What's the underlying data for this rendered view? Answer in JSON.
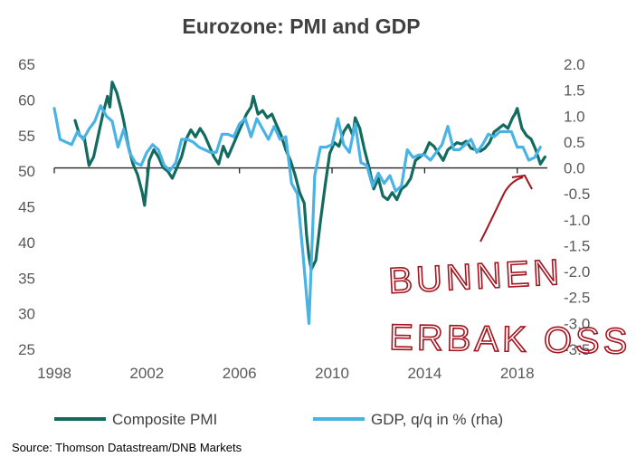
{
  "chart_data": {
    "type": "line",
    "title": "Eurozone: PMI and GDP",
    "x_ticks": [
      "1998",
      "2002",
      "2006",
      "2010",
      "2014",
      "2018"
    ],
    "x_range": [
      1998,
      2019.3
    ],
    "y_left": {
      "range": [
        25,
        65
      ],
      "ticks": [
        "65",
        "60",
        "55",
        "50",
        "45",
        "40",
        "35",
        "30",
        "25"
      ]
    },
    "y_right": {
      "range": [
        -3.5,
        2.0
      ],
      "ticks": [
        "2.0",
        "1.5",
        "1.0",
        "0.5",
        "0.0",
        "-0.5",
        "-1.0",
        "-1.5",
        "-2.0",
        "-2.5",
        "-3.0",
        "-3.5"
      ]
    },
    "legend_position": "bottom",
    "source": "Source: Thomson Datastream/DNB Markets",
    "annotation": {
      "line1": "BUNNEN",
      "line2": "ERBAK OSS"
    },
    "series": [
      {
        "name": "Composite PMI",
        "axis": "left",
        "color": "#136b5f",
        "points": [
          [
            1998.9,
            57.1
          ],
          [
            1999.1,
            55.0
          ],
          [
            1999.3,
            54.6
          ],
          [
            1999.5,
            50.8
          ],
          [
            1999.7,
            52.0
          ],
          [
            1999.9,
            55.0
          ],
          [
            2000.1,
            58.0
          ],
          [
            2000.3,
            60.5
          ],
          [
            2000.4,
            59.0
          ],
          [
            2000.5,
            62.5
          ],
          [
            2000.7,
            61.0
          ],
          [
            2000.9,
            58.5
          ],
          [
            2001.0,
            57.0
          ],
          [
            2001.2,
            53.5
          ],
          [
            2001.4,
            51.0
          ],
          [
            2001.6,
            49.5
          ],
          [
            2001.8,
            47.0
          ],
          [
            2001.9,
            45.2
          ],
          [
            2002.1,
            51.5
          ],
          [
            2002.3,
            53.0
          ],
          [
            2002.5,
            52.0
          ],
          [
            2002.7,
            50.5
          ],
          [
            2002.9,
            50.0
          ],
          [
            2003.1,
            49.0
          ],
          [
            2003.3,
            50.5
          ],
          [
            2003.5,
            52.0
          ],
          [
            2003.7,
            54.5
          ],
          [
            2003.9,
            55.8
          ],
          [
            2004.1,
            54.8
          ],
          [
            2004.3,
            56.0
          ],
          [
            2004.5,
            55.0
          ],
          [
            2004.7,
            53.5
          ],
          [
            2004.9,
            52.0
          ],
          [
            2005.1,
            51.0
          ],
          [
            2005.3,
            53.5
          ],
          [
            2005.5,
            52.0
          ],
          [
            2005.7,
            53.5
          ],
          [
            2005.9,
            55.0
          ],
          [
            2006.1,
            56.5
          ],
          [
            2006.3,
            58.0
          ],
          [
            2006.5,
            59.0
          ],
          [
            2006.6,
            60.5
          ],
          [
            2006.8,
            58.0
          ],
          [
            2007.0,
            58.5
          ],
          [
            2007.2,
            57.5
          ],
          [
            2007.4,
            58.0
          ],
          [
            2007.6,
            56.5
          ],
          [
            2007.8,
            55.0
          ],
          [
            2008.0,
            53.0
          ],
          [
            2008.2,
            51.5
          ],
          [
            2008.4,
            49.5
          ],
          [
            2008.6,
            47.0
          ],
          [
            2008.8,
            45.5
          ],
          [
            2008.9,
            41.0
          ],
          [
            2009.0,
            38.0
          ],
          [
            2009.1,
            36.2
          ],
          [
            2009.3,
            37.5
          ],
          [
            2009.5,
            43.0
          ],
          [
            2009.7,
            48.0
          ],
          [
            2009.9,
            52.5
          ],
          [
            2010.1,
            54.0
          ],
          [
            2010.3,
            53.5
          ],
          [
            2010.5,
            55.5
          ],
          [
            2010.7,
            56.5
          ],
          [
            2010.9,
            55.0
          ],
          [
            2011.0,
            57.5
          ],
          [
            2011.2,
            56.0
          ],
          [
            2011.4,
            53.0
          ],
          [
            2011.6,
            50.5
          ],
          [
            2011.8,
            47.5
          ],
          [
            2012.0,
            49.0
          ],
          [
            2012.2,
            46.5
          ],
          [
            2012.4,
            46.0
          ],
          [
            2012.6,
            47.0
          ],
          [
            2012.8,
            46.0
          ],
          [
            2013.0,
            47.5
          ],
          [
            2013.2,
            48.0
          ],
          [
            2013.4,
            49.0
          ],
          [
            2013.6,
            51.5
          ],
          [
            2013.8,
            52.0
          ],
          [
            2014.0,
            52.5
          ],
          [
            2014.2,
            54.0
          ],
          [
            2014.4,
            53.5
          ],
          [
            2014.6,
            52.5
          ],
          [
            2014.8,
            51.5
          ],
          [
            2015.0,
            53.0
          ],
          [
            2015.2,
            53.5
          ],
          [
            2015.4,
            54.0
          ],
          [
            2015.6,
            53.8
          ],
          [
            2015.8,
            54.2
          ],
          [
            2016.0,
            53.2
          ],
          [
            2016.2,
            53.0
          ],
          [
            2016.4,
            52.8
          ],
          [
            2016.6,
            53.2
          ],
          [
            2016.8,
            54.0
          ],
          [
            2017.0,
            55.5
          ],
          [
            2017.2,
            56.0
          ],
          [
            2017.4,
            56.5
          ],
          [
            2017.6,
            56.0
          ],
          [
            2017.8,
            57.5
          ],
          [
            2017.9,
            58.0
          ],
          [
            2018.0,
            58.8
          ],
          [
            2018.2,
            56.0
          ],
          [
            2018.4,
            55.0
          ],
          [
            2018.6,
            54.5
          ],
          [
            2018.8,
            53.0
          ],
          [
            2019.0,
            51.0
          ],
          [
            2019.1,
            51.5
          ],
          [
            2019.2,
            52.0
          ]
        ]
      },
      {
        "name": "GDP, q/q in % (rha)",
        "axis": "right",
        "color": "#4ab3e6",
        "points": [
          [
            1998.0,
            1.15
          ],
          [
            1998.25,
            0.55
          ],
          [
            1998.5,
            0.5
          ],
          [
            1998.75,
            0.45
          ],
          [
            1999.0,
            0.7
          ],
          [
            1999.25,
            0.55
          ],
          [
            1999.5,
            0.75
          ],
          [
            1999.75,
            0.9
          ],
          [
            2000.0,
            1.2
          ],
          [
            2000.25,
            1.0
          ],
          [
            2000.5,
            0.9
          ],
          [
            2000.75,
            0.4
          ],
          [
            2001.0,
            0.75
          ],
          [
            2001.25,
            0.3
          ],
          [
            2001.5,
            0.1
          ],
          [
            2001.75,
            0.05
          ],
          [
            2002.0,
            0.3
          ],
          [
            2002.25,
            0.45
          ],
          [
            2002.5,
            0.35
          ],
          [
            2002.75,
            0.05
          ],
          [
            2003.0,
            -0.05
          ],
          [
            2003.25,
            0.1
          ],
          [
            2003.5,
            0.55
          ],
          [
            2003.75,
            0.55
          ],
          [
            2004.0,
            0.5
          ],
          [
            2004.25,
            0.4
          ],
          [
            2004.5,
            0.35
          ],
          [
            2004.75,
            0.3
          ],
          [
            2005.0,
            0.3
          ],
          [
            2005.25,
            0.65
          ],
          [
            2005.5,
            0.65
          ],
          [
            2005.75,
            0.6
          ],
          [
            2006.0,
            0.85
          ],
          [
            2006.25,
            0.95
          ],
          [
            2006.5,
            0.6
          ],
          [
            2006.75,
            0.95
          ],
          [
            2007.0,
            0.75
          ],
          [
            2007.25,
            0.55
          ],
          [
            2007.5,
            0.8
          ],
          [
            2007.75,
            0.55
          ],
          [
            2008.0,
            0.6
          ],
          [
            2008.25,
            -0.3
          ],
          [
            2008.5,
            -0.5
          ],
          [
            2008.75,
            -1.7
          ],
          [
            2009.0,
            -3.0
          ],
          [
            2009.25,
            -0.15
          ],
          [
            2009.5,
            0.4
          ],
          [
            2009.75,
            0.4
          ],
          [
            2010.0,
            0.45
          ],
          [
            2010.25,
            0.95
          ],
          [
            2010.5,
            0.45
          ],
          [
            2010.75,
            0.3
          ],
          [
            2011.0,
            0.85
          ],
          [
            2011.25,
            0.1
          ],
          [
            2011.5,
            0.05
          ],
          [
            2011.75,
            -0.35
          ],
          [
            2012.0,
            -0.1
          ],
          [
            2012.25,
            -0.3
          ],
          [
            2012.5,
            -0.15
          ],
          [
            2012.75,
            -0.45
          ],
          [
            2013.0,
            -0.35
          ],
          [
            2013.25,
            0.35
          ],
          [
            2013.5,
            0.2
          ],
          [
            2013.75,
            0.25
          ],
          [
            2014.0,
            0.25
          ],
          [
            2014.25,
            0.15
          ],
          [
            2014.5,
            0.3
          ],
          [
            2014.75,
            0.45
          ],
          [
            2015.0,
            0.8
          ],
          [
            2015.25,
            0.35
          ],
          [
            2015.5,
            0.35
          ],
          [
            2015.75,
            0.45
          ],
          [
            2016.0,
            0.55
          ],
          [
            2016.25,
            0.3
          ],
          [
            2016.5,
            0.45
          ],
          [
            2016.75,
            0.65
          ],
          [
            2017.0,
            0.6
          ],
          [
            2017.25,
            0.7
          ],
          [
            2017.5,
            0.7
          ],
          [
            2017.75,
            0.7
          ],
          [
            2018.0,
            0.4
          ],
          [
            2018.25,
            0.4
          ],
          [
            2018.5,
            0.15
          ],
          [
            2018.75,
            0.2
          ],
          [
            2019.0,
            0.4
          ]
        ]
      }
    ]
  }
}
